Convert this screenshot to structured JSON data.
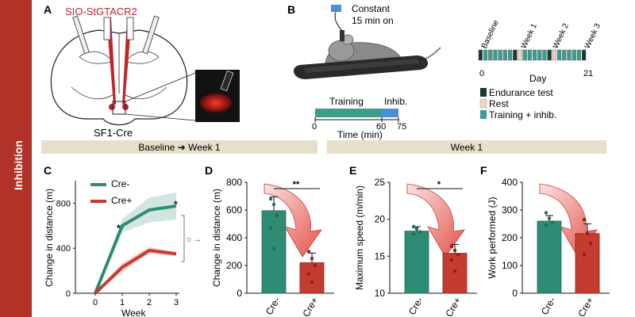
{
  "sidebar": {
    "label": "Inhibition",
    "color": "#b03228"
  },
  "panels": {
    "a": "A",
    "b": "B",
    "c": "C",
    "d": "D",
    "e": "E",
    "f": "F"
  },
  "panel_a": {
    "construct": "SIO-StGTACR2",
    "mouse_line": "SF1-Cre"
  },
  "panel_b": {
    "laser_label_line1": "Constant",
    "laser_label_line2": "15 min on",
    "timeline": {
      "training_label": "Training",
      "inhib_label": "Inhib.",
      "ticks": [
        "0",
        "60",
        "75"
      ],
      "xlabel": "Time (min)"
    },
    "schedule": {
      "week_labels": [
        "Baseline",
        "Week 1",
        "Week 2",
        "Week 3"
      ],
      "start": "0",
      "end": "21",
      "xlabel": "Day",
      "legend": [
        "Endurance test",
        "Rest",
        "Training + inhib."
      ],
      "colors": {
        "endurance": "#183a38",
        "rest": "#ead9c0",
        "training": "#3f9c8c"
      }
    }
  },
  "headers": {
    "left": "Baseline ➔ Week 1",
    "right": "Week 1"
  },
  "colors": {
    "cre_minus": "#2e8b74",
    "cre_plus": "#c43c2f",
    "band": "#e5dfcb",
    "arrow": "#e0342a"
  },
  "chart_data": [
    {
      "type": "line",
      "id": "C",
      "title": "",
      "xlabel": "Week",
      "ylabel": "Change in distance (m)",
      "x": [
        0,
        1,
        2,
        3
      ],
      "xticks": [
        "0",
        "1",
        "2",
        "3"
      ],
      "ylim": [
        0,
        1000
      ],
      "yticks": [
        "0",
        "400",
        "800"
      ],
      "series": [
        {
          "name": "Cre-",
          "values": [
            0,
            600,
            740,
            775
          ],
          "sem": [
            0,
            60,
            110,
            120
          ]
        },
        {
          "name": "Cre+",
          "values": [
            0,
            230,
            380,
            350
          ],
          "sem": [
            0,
            40,
            30,
            20
          ]
        }
      ],
      "annotations": [
        "**",
        "*"
      ]
    },
    {
      "type": "bar",
      "id": "D",
      "ylabel": "Change in distance (m)",
      "categories": [
        "Cre-",
        "Cre+"
      ],
      "values": [
        595,
        220
      ],
      "sem": [
        100,
        70
      ],
      "points": [
        [
          680,
          640,
          560,
          470,
          320
        ],
        [
          300,
          250,
          200,
          140,
          80
        ]
      ],
      "ylim": [
        0,
        800
      ],
      "yticks": [
        "0",
        "200",
        "400",
        "600",
        "800"
      ],
      "significance": "**"
    },
    {
      "type": "bar",
      "id": "E",
      "ylabel": "Maximum speed (m/min)",
      "categories": [
        "Cre-",
        "Cre+"
      ],
      "values": [
        18.4,
        15.4
      ],
      "sem": [
        0.6,
        1.2
      ],
      "points": [
        [
          19,
          18.7,
          18.3,
          18,
          18.8
        ],
        [
          16.3,
          15.8,
          15.2,
          14.5,
          13
        ]
      ],
      "ylim": [
        10,
        25
      ],
      "yticks": [
        "10",
        "15",
        "20",
        "25"
      ],
      "significance": "*"
    },
    {
      "type": "bar",
      "id": "F",
      "ylabel": "Work performed (J)",
      "categories": [
        "Cre-",
        "Cre+"
      ],
      "values": [
        260,
        215
      ],
      "sem": [
        20,
        35
      ],
      "points": [
        [
          290,
          270,
          255,
          245
        ],
        [
          265,
          215,
          180,
          140
        ]
      ],
      "ylim": [
        0,
        400
      ],
      "yticks": [
        "0",
        "100",
        "200",
        "300",
        "400"
      ],
      "significance": ""
    }
  ]
}
